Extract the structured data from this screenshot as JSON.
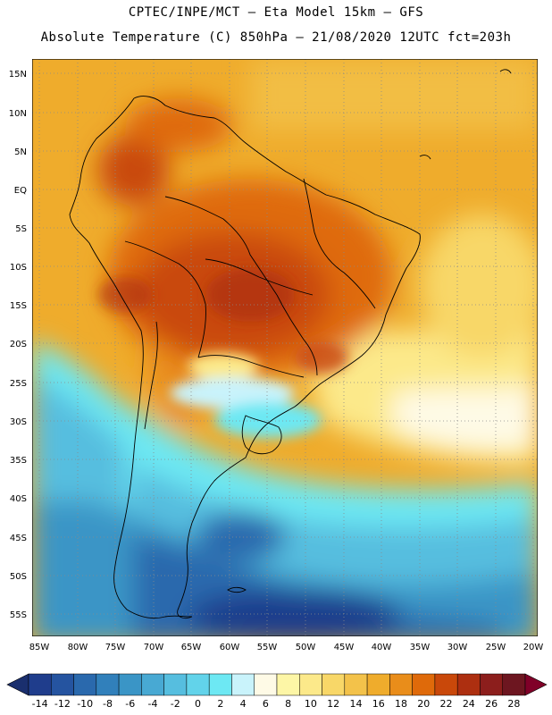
{
  "header": {
    "line1": "CPTEC/INPE/MCT –  Eta Model 15km – GFS",
    "line2": "Absolute Temperature (C) 850hPa – 21/08/2020 12UTC fct=203h"
  },
  "axes": {
    "lat_labels": [
      "15N",
      "10N",
      "5N",
      "EQ",
      "5S",
      "10S",
      "15S",
      "20S",
      "25S",
      "30S",
      "35S",
      "40S",
      "45S",
      "50S",
      "55S"
    ],
    "lon_labels": [
      "85W",
      "80W",
      "75W",
      "70W",
      "65W",
      "60W",
      "55W",
      "50W",
      "45W",
      "40W",
      "35W",
      "30W",
      "25W",
      "20W"
    ]
  },
  "colorbar": {
    "labels": [
      "-14",
      "-12",
      "-10",
      "-8",
      "-6",
      "-4",
      "-2",
      "0",
      "2",
      "4",
      "6",
      "8",
      "10",
      "12",
      "14",
      "16",
      "18",
      "20",
      "22",
      "24",
      "26",
      "28"
    ],
    "colors": [
      "#1f3d8c",
      "#2554a0",
      "#2a69ad",
      "#3180bb",
      "#3a95c6",
      "#48a9d3",
      "#56bedf",
      "#62d3ea",
      "#6de8f3",
      "#c9f3fb",
      "#fefae6",
      "#fdf6a6",
      "#fce98a",
      "#f8d768",
      "#f3c24a",
      "#efac2c",
      "#e98d1a",
      "#df6a0a",
      "#c9480a",
      "#ad2f10",
      "#8c1e1c",
      "#6d1620"
    ],
    "low_end_color": "#1a2f6e",
    "high_end_color": "#800028"
  }
}
